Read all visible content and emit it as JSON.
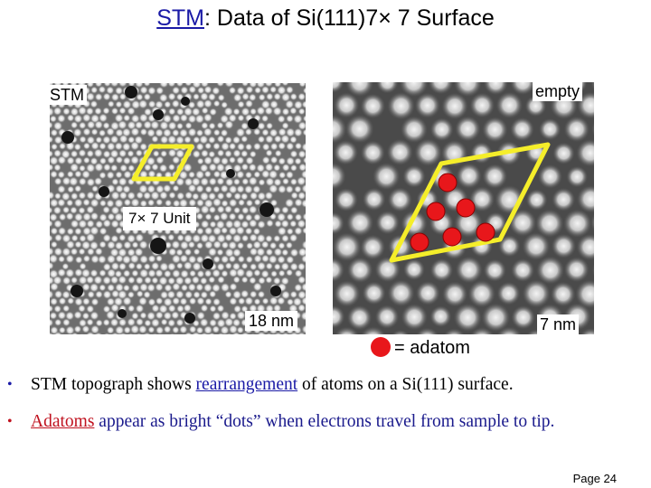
{
  "title": {
    "prefix": "STM",
    "rest": ": Data of Si(111)7× 7 Surface"
  },
  "left_image": {
    "corner_label": "STM",
    "unit_label": "7× 7 Unit",
    "scale_label": "18 nm"
  },
  "right_image": {
    "corner_label": "empty",
    "scale_label": "7 nm"
  },
  "legend": {
    "text": "= adatom",
    "dot_color": "#e8171b"
  },
  "bullets": [
    {
      "before": "STM topograph shows ",
      "link": "rearrangement",
      "after": " of atoms on a Si(111) surface."
    },
    {
      "link": "Adatoms",
      "after": " appear as bright “dots” when electrons travel from sample to tip."
    }
  ],
  "footer": {
    "page": "Page 24"
  },
  "colors": {
    "unit_cell": "#f5ee2a",
    "adatom": "#e8171b",
    "link_blue": "#1a1aa6",
    "link_red": "#c0121f"
  }
}
